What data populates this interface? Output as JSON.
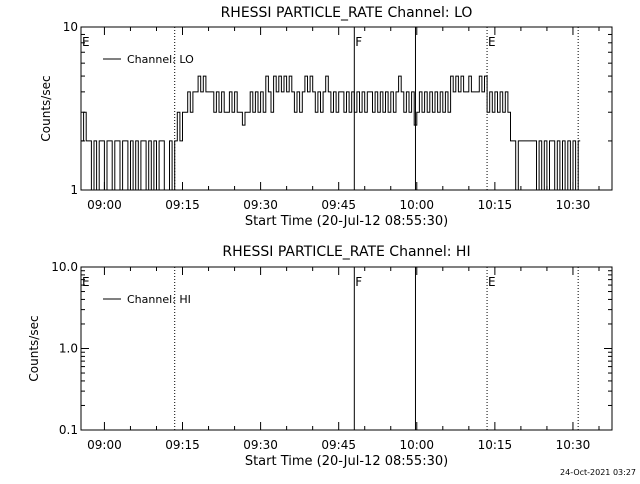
{
  "footer_timestamp": "24-Oct-2021 03:27",
  "chart_data": [
    {
      "type": "line",
      "title": "RHESSI PARTICLE_RATE Channel: LO",
      "xlabel": "Start Time (20-Jul-12 08:55:30)",
      "ylabel": "Counts/sec",
      "yscale": "log",
      "xlim": [
        "08:55:30",
        "10:37:30"
      ],
      "ylim": [
        1,
        10
      ],
      "x_ticks": [
        "09:00",
        "09:15",
        "09:30",
        "09:45",
        "10:00",
        "10:15",
        "10:30"
      ],
      "y_ticks": [
        "1",
        "10"
      ],
      "legend": {
        "position": "top-left",
        "entries": [
          "Channel: LO"
        ]
      },
      "series": [
        {
          "name": "Channel: LO",
          "values": [
            [
              "08:55:30",
              2
            ],
            [
              "08:56:00",
              3
            ],
            [
              "08:56:30",
              2
            ],
            [
              "08:57:30",
              1
            ],
            [
              "08:58:00",
              2
            ],
            [
              "08:58:30",
              1
            ],
            [
              "08:59:00",
              2
            ],
            [
              "09:00:00",
              1
            ],
            [
              "09:00:30",
              2
            ],
            [
              "09:01:00",
              2
            ],
            [
              "09:01:30",
              1
            ],
            [
              "09:02:00",
              2
            ],
            [
              "09:03:00",
              1
            ],
            [
              "09:03:30",
              2
            ],
            [
              "09:04:30",
              1
            ],
            [
              "09:05:00",
              2
            ],
            [
              "09:05:30",
              1
            ],
            [
              "09:06:00",
              2
            ],
            [
              "09:06:30",
              1
            ],
            [
              "09:07:00",
              2
            ],
            [
              "09:08:00",
              1
            ],
            [
              "09:08:30",
              2
            ],
            [
              "09:09:00",
              1
            ],
            [
              "09:09:30",
              2
            ],
            [
              "09:10:00",
              1
            ],
            [
              "09:10:30",
              2
            ],
            [
              "09:11:00",
              2
            ],
            [
              "09:11:30",
              1
            ],
            [
              "09:12:00",
              1
            ],
            [
              "09:12:30",
              2
            ],
            [
              "09:13:00",
              1
            ],
            [
              "09:13:30",
              2
            ],
            [
              "09:14:00",
              3
            ],
            [
              "09:14:30",
              2
            ],
            [
              "09:15:00",
              3
            ],
            [
              "09:15:30",
              3
            ],
            [
              "09:16:00",
              4
            ],
            [
              "09:16:30",
              3
            ],
            [
              "09:17:00",
              4
            ],
            [
              "09:17:30",
              4
            ],
            [
              "09:18:00",
              5
            ],
            [
              "09:18:30",
              4
            ],
            [
              "09:19:00",
              5
            ],
            [
              "09:19:30",
              4
            ],
            [
              "09:20:00",
              4
            ],
            [
              "09:21:00",
              3
            ],
            [
              "09:21:30",
              4
            ],
            [
              "09:22:00",
              3
            ],
            [
              "09:22:30",
              4
            ],
            [
              "09:23:00",
              3
            ],
            [
              "09:24:00",
              4
            ],
            [
              "09:24:30",
              3
            ],
            [
              "09:25:00",
              4
            ],
            [
              "09:25:30",
              3
            ],
            [
              "09:26:00",
              3
            ],
            [
              "09:26:30",
              2.5
            ],
            [
              "09:27:00",
              3
            ],
            [
              "09:27:30",
              3
            ],
            [
              "09:28:00",
              4
            ],
            [
              "09:28:30",
              3
            ],
            [
              "09:29:00",
              4
            ],
            [
              "09:29:30",
              3
            ],
            [
              "09:30:00",
              4
            ],
            [
              "09:30:30",
              3
            ],
            [
              "09:31:00",
              5
            ],
            [
              "09:31:30",
              4
            ],
            [
              "09:32:00",
              3
            ],
            [
              "09:32:30",
              5
            ],
            [
              "09:33:00",
              4
            ],
            [
              "09:33:30",
              5
            ],
            [
              "09:34:00",
              4
            ],
            [
              "09:34:30",
              5
            ],
            [
              "09:35:00",
              4
            ],
            [
              "09:35:30",
              5
            ],
            [
              "09:36:00",
              4
            ],
            [
              "09:36:30",
              3
            ],
            [
              "09:37:00",
              4
            ],
            [
              "09:37:30",
              3
            ],
            [
              "09:38:00",
              4
            ],
            [
              "09:38:30",
              5
            ],
            [
              "09:39:00",
              4
            ],
            [
              "09:39:30",
              5
            ],
            [
              "09:40:00",
              4
            ],
            [
              "09:40:30",
              3
            ],
            [
              "09:41:00",
              4
            ],
            [
              "09:41:30",
              3
            ],
            [
              "09:42:00",
              4
            ],
            [
              "09:42:30",
              5
            ],
            [
              "09:43:00",
              4
            ],
            [
              "09:43:30",
              3
            ],
            [
              "09:44:00",
              4
            ],
            [
              "09:44:30",
              3
            ],
            [
              "09:45:00",
              4
            ],
            [
              "09:45:30",
              4
            ],
            [
              "09:46:00",
              3
            ],
            [
              "09:46:30",
              4
            ],
            [
              "09:47:00",
              3
            ],
            [
              "09:47:30",
              4
            ],
            [
              "09:48:00",
              3
            ],
            [
              "09:48:30",
              4
            ],
            [
              "09:49:00",
              3
            ],
            [
              "09:49:30",
              4
            ],
            [
              "09:50:00",
              3
            ],
            [
              "09:50:30",
              4
            ],
            [
              "09:51:00",
              4
            ],
            [
              "09:51:30",
              3
            ],
            [
              "09:52:00",
              4
            ],
            [
              "09:52:30",
              3
            ],
            [
              "09:53:00",
              4
            ],
            [
              "09:53:30",
              3
            ],
            [
              "09:54:00",
              4
            ],
            [
              "09:54:30",
              3
            ],
            [
              "09:55:00",
              4
            ],
            [
              "09:55:30",
              3
            ],
            [
              "09:56:00",
              4
            ],
            [
              "09:56:30",
              5
            ],
            [
              "09:57:00",
              4
            ],
            [
              "09:57:30",
              3
            ],
            [
              "09:58:00",
              4
            ],
            [
              "09:58:30",
              3
            ],
            [
              "09:59:00",
              4
            ],
            [
              "09:59:30",
              2.5
            ],
            [
              "10:00:00",
              3
            ],
            [
              "10:00:30",
              4
            ],
            [
              "10:01:00",
              3
            ],
            [
              "10:01:30",
              4
            ],
            [
              "10:02:00",
              3
            ],
            [
              "10:02:30",
              4
            ],
            [
              "10:03:00",
              3
            ],
            [
              "10:03:30",
              4
            ],
            [
              "10:04:00",
              3
            ],
            [
              "10:04:30",
              4
            ],
            [
              "10:05:00",
              3
            ],
            [
              "10:05:30",
              4
            ],
            [
              "10:06:00",
              3
            ],
            [
              "10:06:30",
              5
            ],
            [
              "10:07:00",
              4
            ],
            [
              "10:07:30",
              5
            ],
            [
              "10:08:00",
              4
            ],
            [
              "10:08:30",
              5
            ],
            [
              "10:09:00",
              4
            ],
            [
              "10:09:30",
              4
            ],
            [
              "10:10:00",
              5
            ],
            [
              "10:10:30",
              4
            ],
            [
              "10:11:00",
              4
            ],
            [
              "10:11:30",
              4
            ],
            [
              "10:12:00",
              5
            ],
            [
              "10:12:30",
              4
            ],
            [
              "10:13:00",
              5
            ],
            [
              "10:13:30",
              3
            ],
            [
              "10:14:00",
              4
            ],
            [
              "10:14:30",
              3
            ],
            [
              "10:15:00",
              4
            ],
            [
              "10:15:30",
              3
            ],
            [
              "10:16:00",
              4
            ],
            [
              "10:16:30",
              3
            ],
            [
              "10:17:00",
              4
            ],
            [
              "10:17:30",
              3
            ],
            [
              "10:18:00",
              2
            ],
            [
              "10:18:30",
              2
            ],
            [
              "10:19:00",
              1
            ],
            [
              "10:19:30",
              2
            ],
            [
              "10:20:00",
              2
            ],
            [
              "10:21:00",
              2
            ],
            [
              "10:22:00",
              2
            ],
            [
              "10:23:00",
              1
            ],
            [
              "10:23:30",
              2
            ],
            [
              "10:24:00",
              1
            ],
            [
              "10:24:30",
              2
            ],
            [
              "10:25:00",
              1
            ],
            [
              "10:25:30",
              2
            ],
            [
              "10:26:00",
              2
            ],
            [
              "10:26:30",
              1
            ],
            [
              "10:27:00",
              2
            ],
            [
              "10:27:30",
              1
            ],
            [
              "10:28:00",
              2
            ],
            [
              "10:28:30",
              1
            ],
            [
              "10:29:00",
              2
            ],
            [
              "10:29:30",
              1
            ],
            [
              "10:30:00",
              2
            ],
            [
              "10:30:30",
              1
            ],
            [
              "10:31:00",
              2
            ]
          ]
        }
      ],
      "markers": [
        {
          "label": "E",
          "time": "08:55:30",
          "style": "solid"
        },
        {
          "label": "",
          "time": "09:13:30",
          "style": "dotted"
        },
        {
          "label": "F",
          "time": "09:48:00",
          "style": "solid"
        },
        {
          "label": "",
          "time": "09:59:45",
          "style": "solid"
        },
        {
          "label": "E",
          "time": "10:13:30",
          "style": "dotted"
        },
        {
          "label": "",
          "time": "10:31:00",
          "style": "dotted"
        }
      ]
    },
    {
      "type": "line",
      "title": "RHESSI PARTICLE_RATE Channel: HI",
      "xlabel": "Start Time (20-Jul-12 08:55:30)",
      "ylabel": "Counts/sec",
      "yscale": "log",
      "xlim": [
        "08:55:30",
        "10:37:30"
      ],
      "ylim": [
        0.1,
        10.0
      ],
      "x_ticks": [
        "09:00",
        "09:15",
        "09:30",
        "09:45",
        "10:00",
        "10:15",
        "10:30"
      ],
      "y_ticks": [
        "0.1",
        "1.0",
        "10.0"
      ],
      "legend": {
        "position": "top-left",
        "entries": [
          "Channel: HI"
        ]
      },
      "series": [
        {
          "name": "Channel: HI",
          "values": []
        }
      ],
      "markers": [
        {
          "label": "E",
          "time": "08:55:30",
          "style": "solid"
        },
        {
          "label": "",
          "time": "09:13:30",
          "style": "dotted"
        },
        {
          "label": "F",
          "time": "09:48:00",
          "style": "solid"
        },
        {
          "label": "",
          "time": "09:59:45",
          "style": "solid"
        },
        {
          "label": "E",
          "time": "10:13:30",
          "style": "dotted"
        },
        {
          "label": "",
          "time": "10:31:00",
          "style": "dotted"
        }
      ]
    }
  ]
}
